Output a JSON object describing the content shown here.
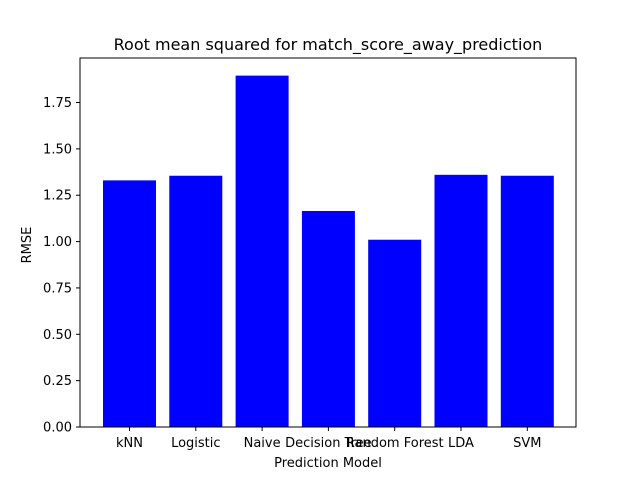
{
  "chart_data": {
    "type": "bar",
    "title": "Root mean squared for match_score_away_prediction",
    "xlabel": "Prediction Model",
    "ylabel": "RMSE",
    "categories": [
      "kNN",
      "Logistic",
      "Naive",
      "Decision Tree",
      "Random Forest",
      "LDA",
      "SVM"
    ],
    "values": [
      1.33,
      1.355,
      1.895,
      1.165,
      1.01,
      1.36,
      1.355
    ],
    "ylim": [
      0,
      1.99
    ],
    "yticks": [
      0.0,
      0.25,
      0.5,
      0.75,
      1.0,
      1.25,
      1.5,
      1.75
    ],
    "ytick_labels": [
      "0.00",
      "0.25",
      "0.50",
      "0.75",
      "1.00",
      "1.25",
      "1.50",
      "1.75"
    ],
    "bar_color": "#0000ff",
    "grid": false,
    "legend": "none"
  }
}
